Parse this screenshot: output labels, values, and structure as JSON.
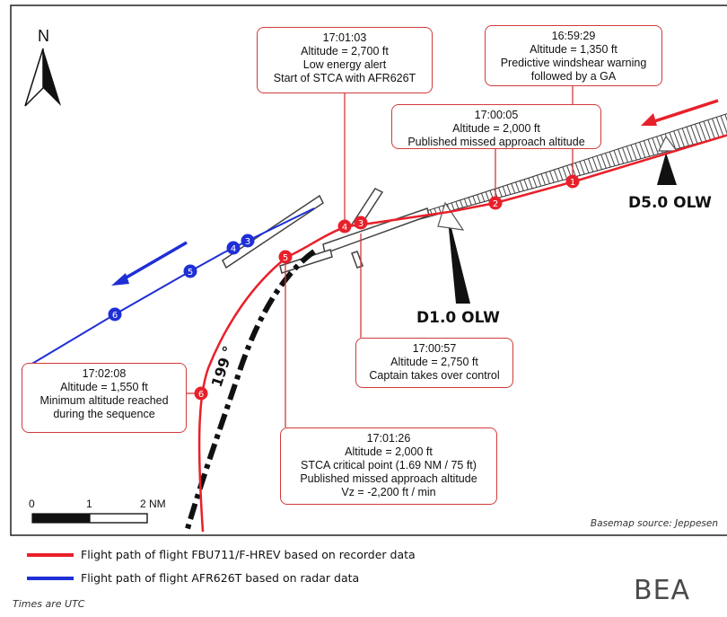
{
  "map": {
    "north_label": "N",
    "heading_label": "199 °",
    "scale": {
      "zero": "0",
      "one": "1",
      "two": "2 NM"
    },
    "basemap_source": "Basemap source: Jeppesen",
    "markers": {
      "d5": "D5.0 OLW",
      "d1": "D1.0 OLW"
    },
    "red_points": [
      "1",
      "2",
      "3",
      "4",
      "5",
      "6"
    ],
    "blue_points": [
      "3",
      "4",
      "5",
      "6"
    ]
  },
  "callouts": {
    "c1": [
      "16:59:29",
      "Altitude = 1,350 ft",
      "Predictive windshear warning",
      "followed by a GA"
    ],
    "c2": [
      "17:00:05",
      "Altitude = 2,000 ft",
      "Published missed approach altitude"
    ],
    "c3": [
      "17:00:57",
      "Altitude = 2,750 ft",
      "Captain takes over control"
    ],
    "c4": [
      "17:01:03",
      "Altitude = 2,700 ft",
      "Low energy alert",
      "Start of STCA with AFR626T"
    ],
    "c5": [
      "17:01:26",
      "Altitude = 2,000 ft",
      "STCA critical point (1.69 NM / 75 ft)",
      "Published missed approach altitude",
      "Vz = -2,200 ft / min"
    ],
    "c6": [
      "17:02:08",
      "Altitude = 1,550 ft",
      "Minimum altitude reached",
      "during the sequence"
    ]
  },
  "legend": {
    "red": "Flight path of flight FBU711/F-HREV based on recorder data",
    "blue": "Flight path of flight AFR626T based on radar data",
    "note": "Times are UTC",
    "logo": "BEA"
  },
  "colors": {
    "red": "#e8202a",
    "blue": "#1f2fd6",
    "callout_border": "#d23a3a"
  }
}
